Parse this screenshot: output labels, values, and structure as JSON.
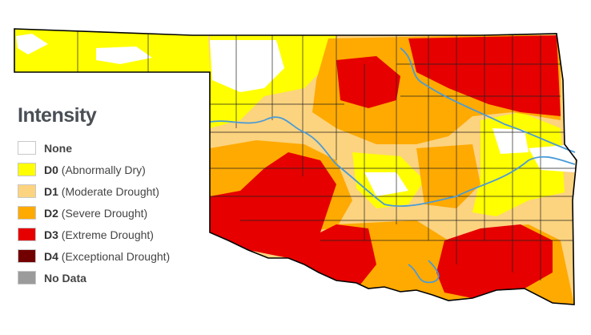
{
  "map": {
    "colors": {
      "none": "#ffffff",
      "d0": "#ffff00",
      "d1": "#fcd37f",
      "d2": "#ffaa00",
      "d3": "#e60000",
      "d4": "#730000",
      "no_data": "#9b9b9b",
      "river": "#4a9bd6",
      "border": "#000000",
      "county_lines": "#222222"
    }
  },
  "legend": {
    "title": "Intensity",
    "items": [
      {
        "code": "",
        "desc": "None",
        "color": "#ffffff"
      },
      {
        "code": "D0",
        "desc": "(Abnormally Dry)",
        "color": "#ffff00"
      },
      {
        "code": "D1",
        "desc": "(Moderate Drought)",
        "color": "#fcd37f"
      },
      {
        "code": "D2",
        "desc": "(Severe Drought)",
        "color": "#ffaa00"
      },
      {
        "code": "D3",
        "desc": "(Extreme Drought)",
        "color": "#e60000"
      },
      {
        "code": "D4",
        "desc": "(Exceptional Drought)",
        "color": "#730000"
      },
      {
        "code": "",
        "desc": "No Data",
        "color": "#9b9b9b"
      }
    ]
  }
}
